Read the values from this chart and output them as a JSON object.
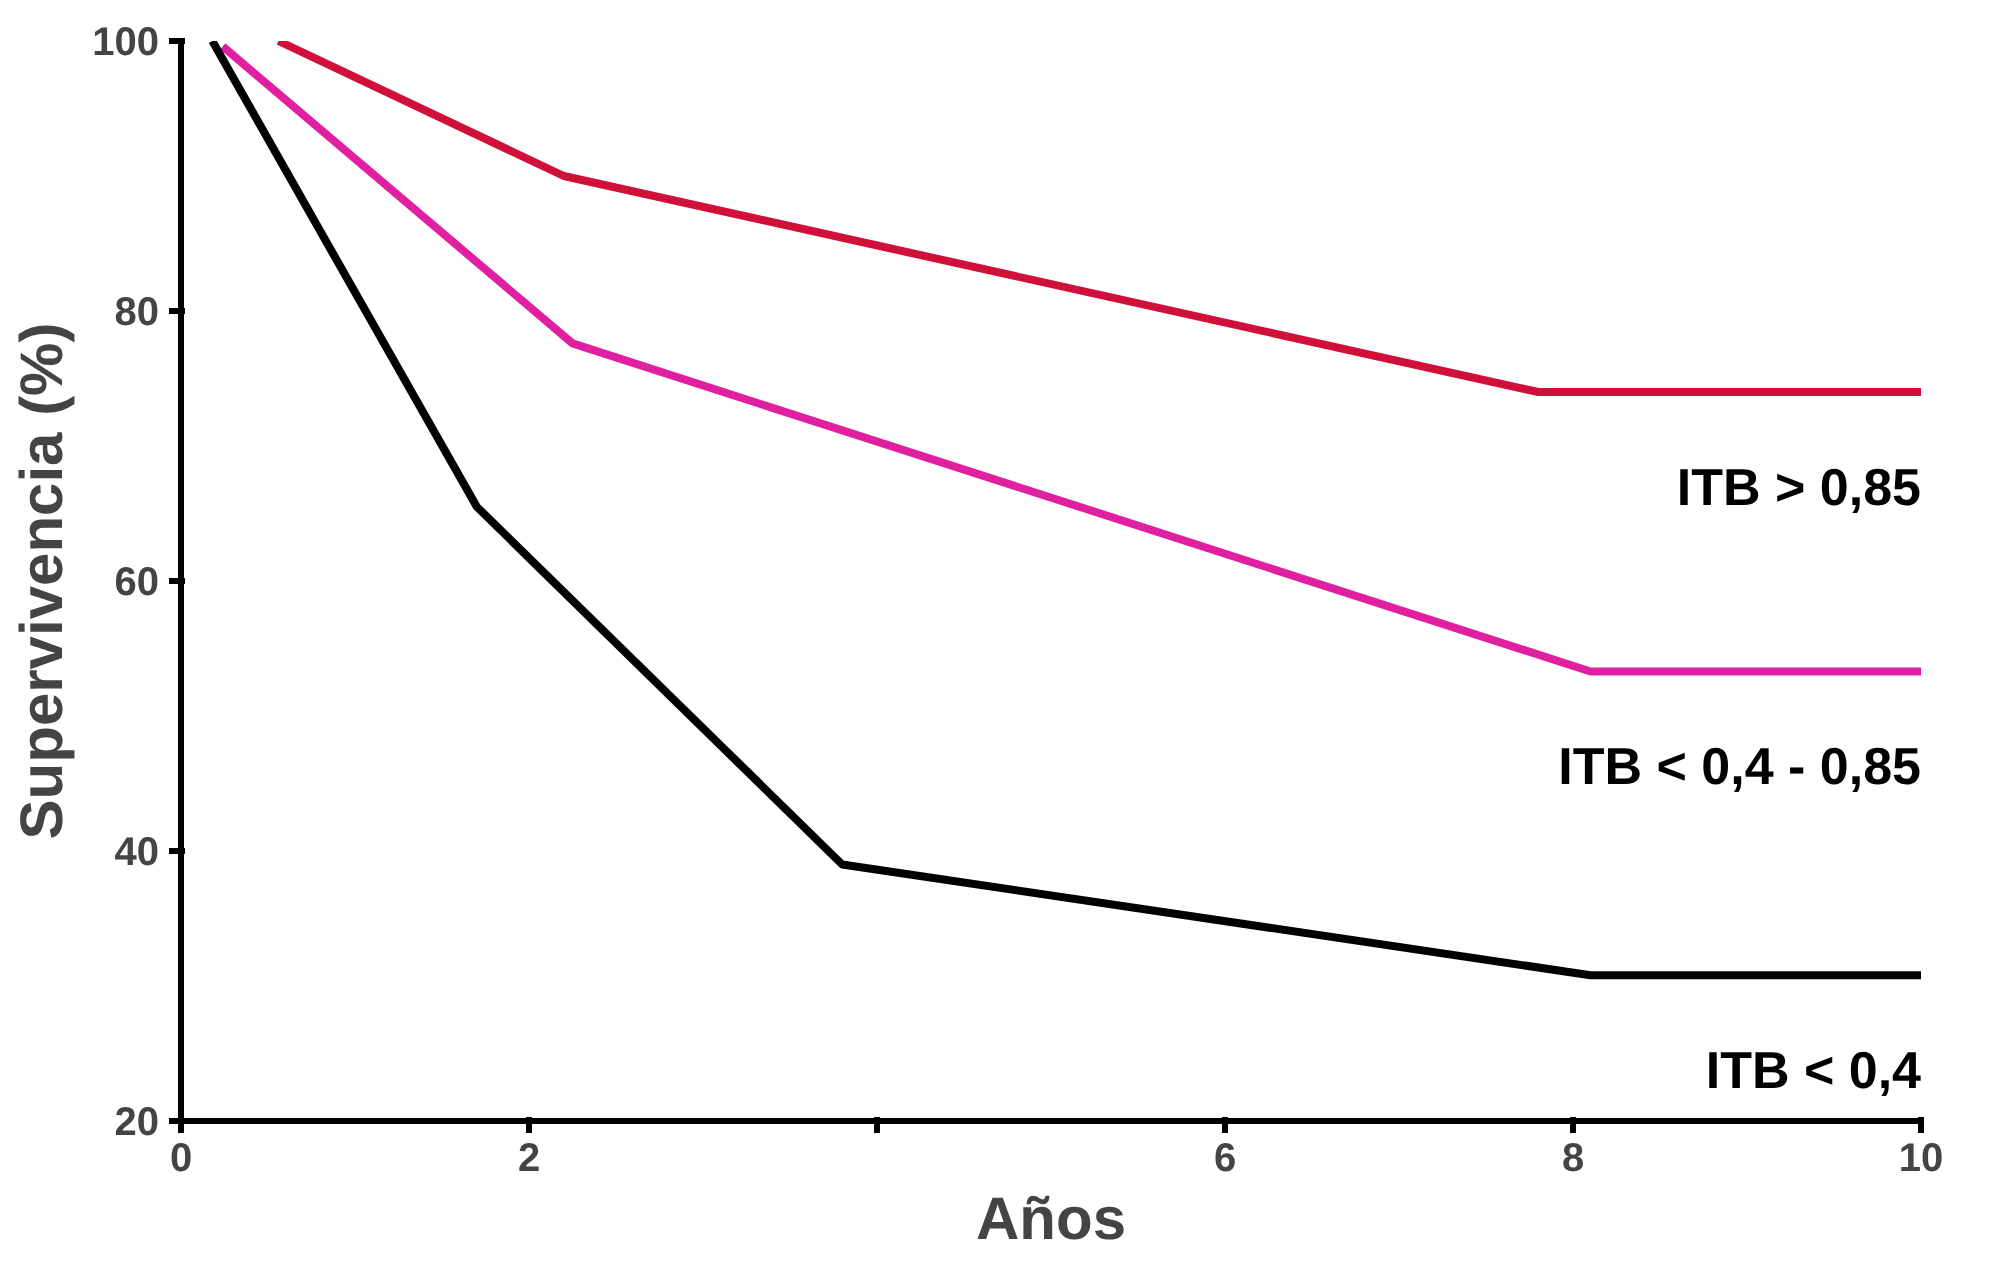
{
  "chart_data": {
    "type": "line",
    "xlabel": "Años",
    "ylabel": "Supervivencia (%)",
    "xlim": [
      0,
      10
    ],
    "ylim": [
      20,
      100
    ],
    "xticks": [
      0,
      2,
      {
        "value": 4,
        "label": null
      },
      6,
      8,
      10
    ],
    "yticks": [
      20,
      40,
      60,
      80,
      100
    ],
    "grid": false,
    "legend": false,
    "marker": "none",
    "line_style": "solid",
    "series": [
      {
        "name": "ITB > 0,85",
        "color": "#d0103a",
        "x": [
          0.56,
          2.2,
          7.8,
          10
        ],
        "values": [
          100,
          90,
          74,
          74
        ]
      },
      {
        "name": "ITB < 0,4 - 0,85",
        "color": "#e020a0",
        "x": [
          0.24,
          2.25,
          8.1,
          10
        ],
        "values": [
          99.6,
          77.6,
          53.3,
          53.3
        ]
      },
      {
        "name": "ITB < 0,4",
        "color": "#000000",
        "x": [
          0.18,
          1.7,
          3.8,
          8.1,
          10
        ],
        "values": [
          100,
          65.5,
          39,
          30.8,
          30.8
        ]
      }
    ]
  }
}
